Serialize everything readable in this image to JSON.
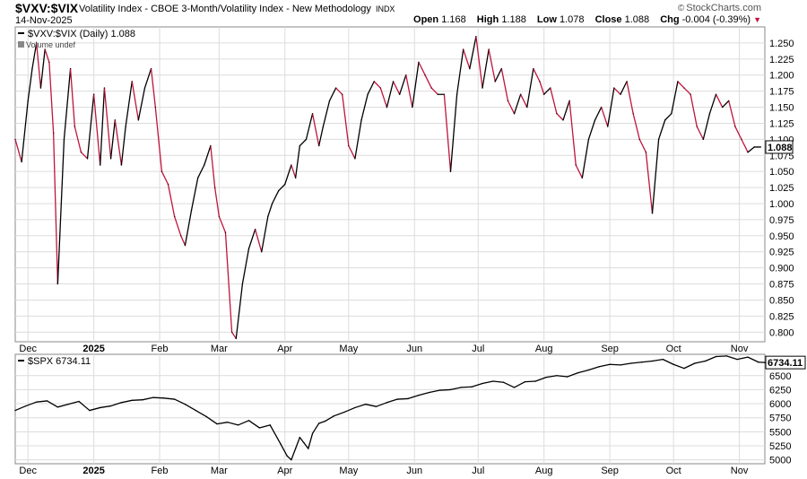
{
  "header": {
    "symbol": "$VXV:$VIX",
    "description": "Volatility Index - CBOE 3-Month/Volatility Index - New Methodology",
    "exchange": "INDX",
    "date": "14-Nov-2025",
    "copyright": "StockCharts.com",
    "open_label": "Open",
    "open_value": "1.168",
    "high_label": "High",
    "high_value": "1.188",
    "low_label": "Low",
    "low_value": "1.078",
    "close_label": "Close",
    "close_value": "1.088",
    "chg_label": "Chg",
    "chg_value": "-0.004 (-0.39%)"
  },
  "colors": {
    "up": "#000000",
    "down": "#c0143c",
    "grid": "#dcdcdc",
    "frame": "#888888"
  },
  "chart_data": [
    {
      "type": "line",
      "legend": "$VXV:$VIX (Daily) 1.088",
      "volume_note": "Volume undef",
      "last_value_label": "1.088",
      "ylim": [
        0.785,
        1.275
      ],
      "y_ticks": [
        0.8,
        0.825,
        0.85,
        0.875,
        0.9,
        0.925,
        0.95,
        0.975,
        1.0,
        1.025,
        1.05,
        1.075,
        1.1,
        1.125,
        1.15,
        1.175,
        1.2,
        1.225,
        1.25
      ],
      "y_tick_labels": [
        "0.800",
        "0.825",
        "0.850",
        "0.875",
        "0.900",
        "0.925",
        "0.950",
        "0.975",
        "1.000",
        "1.025",
        "1.050",
        "1.075",
        "1.100",
        "1.125",
        "1.150",
        "1.175",
        "1.200",
        "1.225",
        "1.250"
      ],
      "month_labels": [
        {
          "label": "Dec",
          "day": 6
        },
        {
          "label": "2025",
          "day": 37,
          "bold": true
        },
        {
          "label": "Feb",
          "day": 68
        },
        {
          "label": "Mar",
          "day": 96
        },
        {
          "label": "Apr",
          "day": 127
        },
        {
          "label": "May",
          "day": 157
        },
        {
          "label": "Jun",
          "day": 188
        },
        {
          "label": "Jul",
          "day": 218
        },
        {
          "label": "Aug",
          "day": 249
        },
        {
          "label": "Sep",
          "day": 280
        },
        {
          "label": "Oct",
          "day": 310
        },
        {
          "label": "Nov",
          "day": 341
        }
      ],
      "x_range_days": [
        0,
        353
      ],
      "x_days": [
        0,
        3,
        6,
        8,
        10,
        12,
        14,
        16,
        18,
        20,
        23,
        26,
        28,
        31,
        34,
        37,
        40,
        42,
        45,
        47,
        50,
        52,
        55,
        58,
        61,
        64,
        66,
        69,
        72,
        75,
        78,
        80,
        83,
        86,
        89,
        92,
        94,
        96,
        99,
        102,
        104,
        107,
        110,
        113,
        116,
        119,
        121,
        124,
        127,
        130,
        132,
        134,
        137,
        140,
        143,
        145,
        148,
        151,
        154,
        157,
        160,
        163,
        166,
        169,
        172,
        175,
        178,
        181,
        184,
        187,
        190,
        193,
        196,
        199,
        202,
        205,
        208,
        211,
        214,
        217,
        220,
        223,
        226,
        229,
        232,
        235,
        238,
        241,
        244,
        247,
        249,
        252,
        255,
        258,
        261,
        264,
        267,
        270,
        273,
        276,
        279,
        282,
        285,
        288,
        291,
        294,
        297,
        300,
        303,
        306,
        309,
        312,
        315,
        318,
        321,
        324,
        327,
        330,
        333,
        336,
        339,
        342,
        345,
        348,
        351
      ],
      "values": [
        1.1,
        1.065,
        1.16,
        1.21,
        1.25,
        1.18,
        1.24,
        1.22,
        1.11,
        0.875,
        1.1,
        1.21,
        1.12,
        1.08,
        1.07,
        1.17,
        1.06,
        1.18,
        1.07,
        1.13,
        1.06,
        1.12,
        1.19,
        1.13,
        1.18,
        1.21,
        1.15,
        1.05,
        1.03,
        0.98,
        0.95,
        0.935,
        0.99,
        1.04,
        1.06,
        1.09,
        1.025,
        0.98,
        0.955,
        0.8,
        0.79,
        0.875,
        0.93,
        0.96,
        0.925,
        0.98,
        1.0,
        1.02,
        1.03,
        1.06,
        1.04,
        1.09,
        1.1,
        1.14,
        1.09,
        1.12,
        1.16,
        1.18,
        1.17,
        1.09,
        1.07,
        1.13,
        1.17,
        1.19,
        1.18,
        1.15,
        1.19,
        1.17,
        1.2,
        1.15,
        1.22,
        1.2,
        1.18,
        1.17,
        1.17,
        1.05,
        1.17,
        1.24,
        1.21,
        1.26,
        1.18,
        1.24,
        1.19,
        1.21,
        1.16,
        1.14,
        1.17,
        1.15,
        1.21,
        1.19,
        1.17,
        1.18,
        1.14,
        1.13,
        1.16,
        1.06,
        1.04,
        1.1,
        1.13,
        1.15,
        1.12,
        1.18,
        1.17,
        1.19,
        1.14,
        1.1,
        1.08,
        0.985,
        1.1,
        1.13,
        1.14,
        1.19,
        1.18,
        1.17,
        1.12,
        1.1,
        1.14,
        1.17,
        1.15,
        1.16,
        1.12,
        1.1,
        1.08,
        1.088,
        1.088
      ],
      "_note_x": "x_days are calendar days since 2024-11-19"
    },
    {
      "type": "line",
      "legend": "$SPX 6734.11",
      "last_value_label": "6734.11",
      "ylim": [
        4930,
        6880
      ],
      "y_ticks": [
        5000,
        5250,
        5500,
        5750,
        6000,
        6250,
        6500
      ],
      "y_tick_labels": [
        "5000",
        "5250",
        "5500",
        "5750",
        "6000",
        "6250",
        "6500"
      ],
      "x_days": [
        0,
        5,
        10,
        15,
        20,
        25,
        30,
        35,
        40,
        45,
        50,
        55,
        60,
        65,
        70,
        75,
        80,
        85,
        90,
        95,
        100,
        105,
        110,
        115,
        120,
        125,
        128,
        130,
        132,
        134,
        136,
        138,
        140,
        143,
        146,
        150,
        155,
        160,
        165,
        170,
        175,
        180,
        185,
        190,
        195,
        200,
        205,
        210,
        215,
        220,
        225,
        230,
        235,
        240,
        245,
        250,
        255,
        260,
        265,
        270,
        275,
        280,
        285,
        290,
        295,
        300,
        305,
        310,
        315,
        320,
        325,
        330,
        335,
        340,
        345,
        350,
        353
      ],
      "values": [
        5880,
        5960,
        6030,
        6050,
        5940,
        5990,
        6040,
        5880,
        5930,
        5960,
        6020,
        6060,
        6070,
        6110,
        6100,
        6080,
        5990,
        5880,
        5770,
        5640,
        5670,
        5620,
        5700,
        5570,
        5620,
        5280,
        5070,
        5000,
        5200,
        5400,
        5300,
        5200,
        5470,
        5650,
        5690,
        5780,
        5850,
        5930,
        5990,
        5950,
        6020,
        6080,
        6090,
        6150,
        6200,
        6240,
        6250,
        6290,
        6300,
        6360,
        6400,
        6380,
        6290,
        6390,
        6400,
        6470,
        6500,
        6480,
        6550,
        6600,
        6660,
        6700,
        6690,
        6720,
        6740,
        6760,
        6790,
        6700,
        6630,
        6720,
        6760,
        6840,
        6850,
        6790,
        6830,
        6740,
        6734
      ]
    }
  ]
}
